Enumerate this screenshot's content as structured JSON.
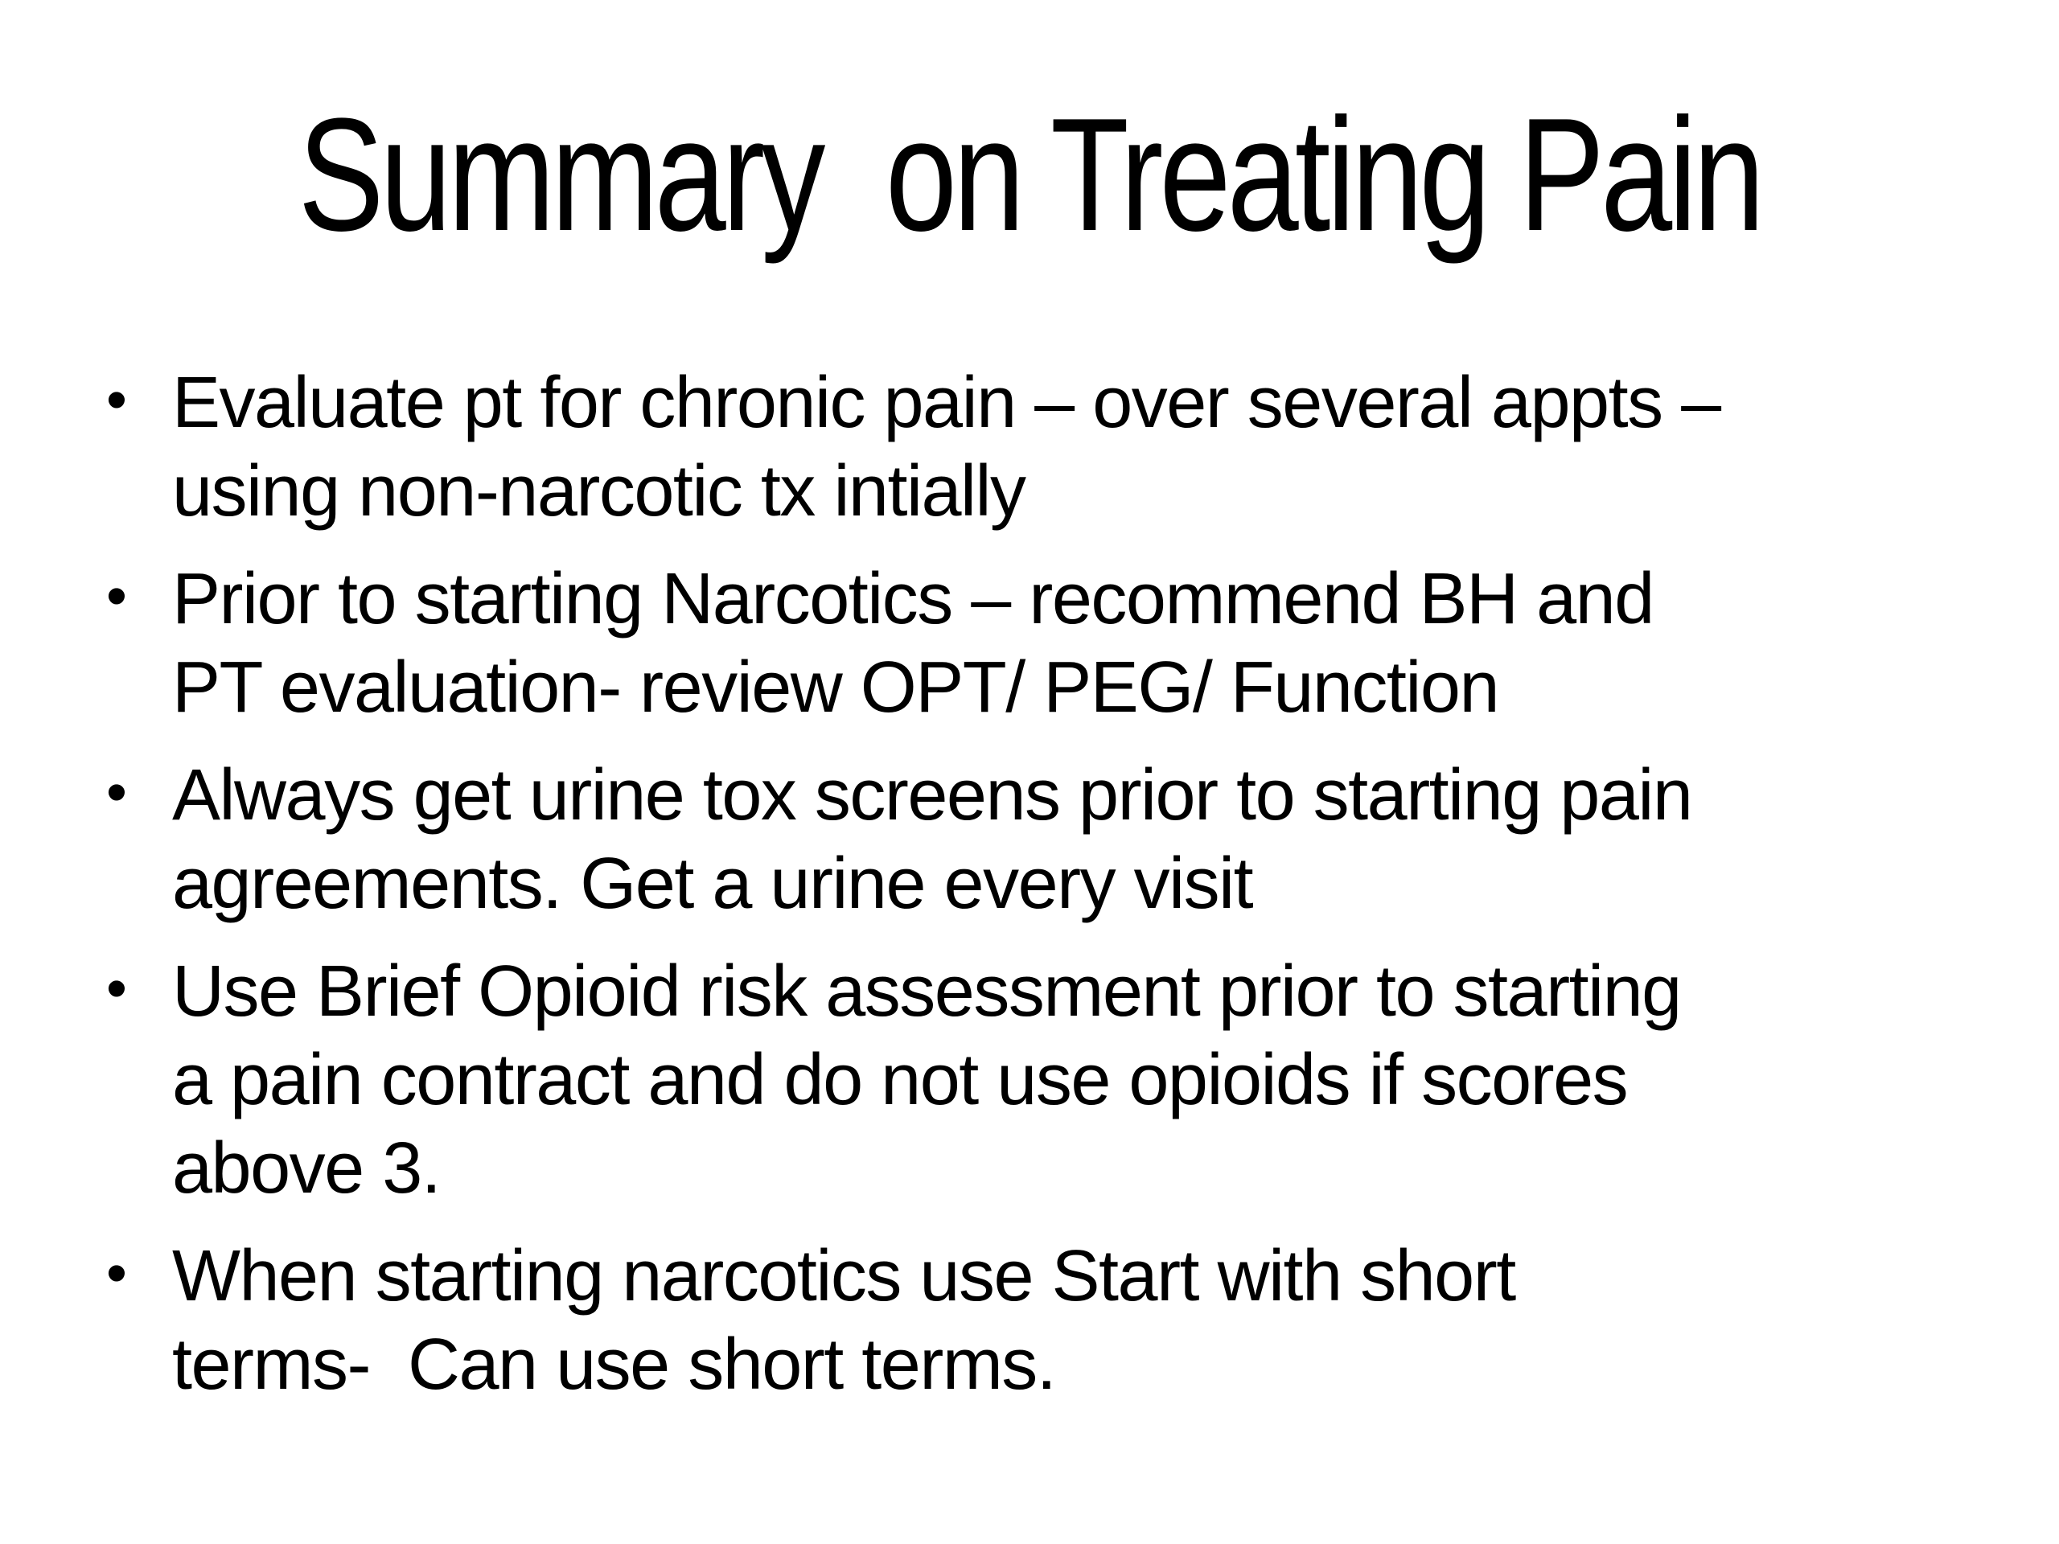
{
  "slide": {
    "title": "Summary  on Treating Pain",
    "bullet_char": "•",
    "text_color": "#000000",
    "background_color": "#ffffff",
    "bullets": [
      {
        "lines": [
          "Evaluate pt for chronic pain – over several appts –",
          "using non-narcotic tx intially"
        ]
      },
      {
        "lines": [
          "Prior to starting Narcotics – recommend BH and",
          "PT evaluation- review OPT/ PEG/ Function"
        ]
      },
      {
        "lines": [
          "Always get urine tox screens prior to starting pain",
          "agreements. Get a urine every visit"
        ]
      },
      {
        "lines": [
          "Use Brief Opioid risk assessment prior to starting",
          "a pain contract and do not use opioids if scores",
          "above 3."
        ]
      },
      {
        "lines": [
          "When starting narcotics use Start with short",
          "terms-  Can use short terms."
        ]
      }
    ]
  }
}
